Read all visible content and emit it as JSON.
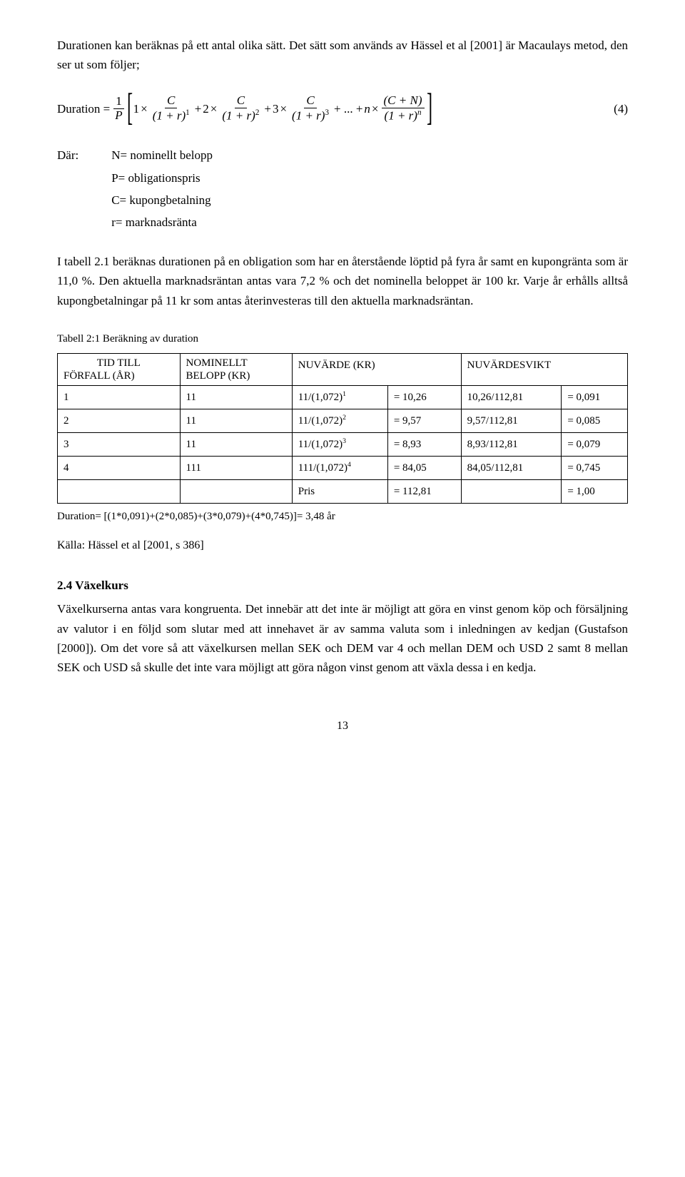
{
  "intro_para": "Durationen kan beräknas på ett antal olika sätt. Det sätt som används av Hässel et al [2001] är Macaulays metod, den ser ut som följer;",
  "formula": {
    "lhs_label": "Duration =",
    "prefix_frac": {
      "num": "1",
      "den": "P"
    },
    "terms": [
      {
        "coef": "1",
        "num": "C",
        "den_base": "(1 + r)",
        "den_exp": "1"
      },
      {
        "coef": "2",
        "num": "C",
        "den_base": "(1 + r)",
        "den_exp": "2"
      },
      {
        "coef": "3",
        "num": "C",
        "den_base": "(1 + r)",
        "den_exp": "3"
      }
    ],
    "ellipsis": "+ ... +",
    "last": {
      "coef": "n",
      "num": "(C + N)",
      "den_base": "(1 + r)",
      "den_exp": "n"
    },
    "eq_no": "(4)"
  },
  "where_label": "Där:",
  "where_defs": [
    "N= nominellt belopp",
    "P= obligationspris",
    "C= kupongbetalning",
    "r= marknadsränta"
  ],
  "body_para": "I tabell 2.1 beräknas durationen på en obligation som har en återstående löptid på fyra år samt en kupongränta som är 11,0 %. Den aktuella marknadsräntan antas vara 7,2 % och det nominella beloppet är 100 kr. Varje år erhålls alltså kupongbetalningar på 11 kr som antas återinvesteras till den aktuella marknadsräntan.",
  "table_caption": "Tabell 2:1 Beräkning av duration",
  "table": {
    "headers": {
      "col1_l1": "TID TILL",
      "col1_l2": "FÖRFALL (ÅR)",
      "col2_l1": "NOMINELLT",
      "col2_l2": "BELOPP (KR)",
      "col3": "NUVÄRDE (KR)",
      "col4": "NUVÄRDESVIKT"
    },
    "rows": [
      {
        "yr": "1",
        "nom": "11",
        "calc": "11/(1,072)",
        "exp": "1",
        "pv": "= 10,26",
        "wcalc": "10,26/112,81",
        "w": "= 0,091"
      },
      {
        "yr": "2",
        "nom": "11",
        "calc": "11/(1,072)",
        "exp": "2",
        "pv": "= 9,57",
        "wcalc": "9,57/112,81",
        "w": "= 0,085"
      },
      {
        "yr": "3",
        "nom": "11",
        "calc": "11/(1,072)",
        "exp": "3",
        "pv": "= 8,93",
        "wcalc": "8,93/112,81",
        "w": "= 0,079"
      },
      {
        "yr": "4",
        "nom": "111",
        "calc": "111/(1,072)",
        "exp": "4",
        "pv": "= 84,05",
        "wcalc": "84,05/112,81",
        "w": "= 0,745"
      }
    ],
    "foot": {
      "label": "Pris",
      "pv": "= 112,81",
      "w": "= 1,00"
    }
  },
  "duration_line": "Duration= [(1*0,091)+(2*0,085)+(3*0,079)+(4*0,745)]= 3,48 år",
  "source_line": "Källa: Hässel et al [2001, s 386]",
  "sec_heading": "2.4 Växelkurs",
  "sec_para": "Växelkurserna antas vara kongruenta. Det innebär att det inte är möjligt att göra en vinst genom köp och försäljning av valutor i en följd som slutar med att innehavet är av samma valuta som i inledningen av kedjan (Gustafson [2000]). Om det vore så att växelkursen mellan SEK och DEM var 4 och mellan DEM och USD 2 samt 8 mellan SEK och USD så skulle det inte vara möjligt att göra någon vinst genom att växla dessa i en kedja.",
  "page_no": "13"
}
